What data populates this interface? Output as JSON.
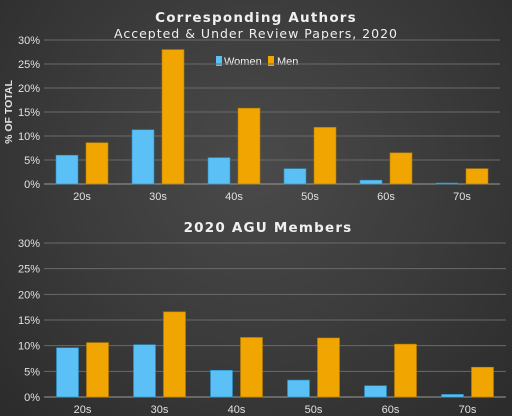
{
  "colors": {
    "women": "#5bc0f5",
    "men": "#f0a500"
  },
  "chart_data": [
    {
      "type": "bar",
      "title": "Corresponding Authors",
      "subtitle": "Accepted & Under Review Papers, 2020",
      "xlabel": "",
      "ylabel": "% OF TOTAL",
      "ylim": [
        0,
        30
      ],
      "yticks": [
        0,
        5,
        10,
        15,
        20,
        25,
        30
      ],
      "ytick_labels": [
        "0%",
        "5%",
        "10%",
        "15%",
        "20%",
        "25%",
        "30%"
      ],
      "categories": [
        "20s",
        "30s",
        "40s",
        "50s",
        "60s",
        "70s"
      ],
      "grid": true,
      "legend": "top-center",
      "series": [
        {
          "name": "Women",
          "values": [
            6.0,
            11.3,
            5.5,
            3.2,
            0.8,
            0.2
          ]
        },
        {
          "name": "Men",
          "values": [
            8.6,
            28.0,
            15.8,
            11.8,
            6.5,
            3.2
          ]
        }
      ]
    },
    {
      "type": "bar",
      "title": "2020 AGU Members",
      "xlabel": "",
      "ylabel": "",
      "ylim": [
        0,
        30
      ],
      "yticks": [
        0,
        5,
        10,
        15,
        20,
        25,
        30
      ],
      "ytick_labels": [
        "0%",
        "5%",
        "10%",
        "15%",
        "20%",
        "25%",
        "30%"
      ],
      "categories": [
        "20s",
        "30s",
        "40s",
        "50s",
        "60s",
        "70s"
      ],
      "grid": true,
      "series": [
        {
          "name": "Women",
          "values": [
            9.6,
            10.2,
            5.2,
            3.3,
            2.2,
            0.5
          ]
        },
        {
          "name": "Men",
          "values": [
            10.6,
            16.6,
            11.6,
            11.5,
            10.3,
            5.8
          ]
        }
      ]
    }
  ]
}
